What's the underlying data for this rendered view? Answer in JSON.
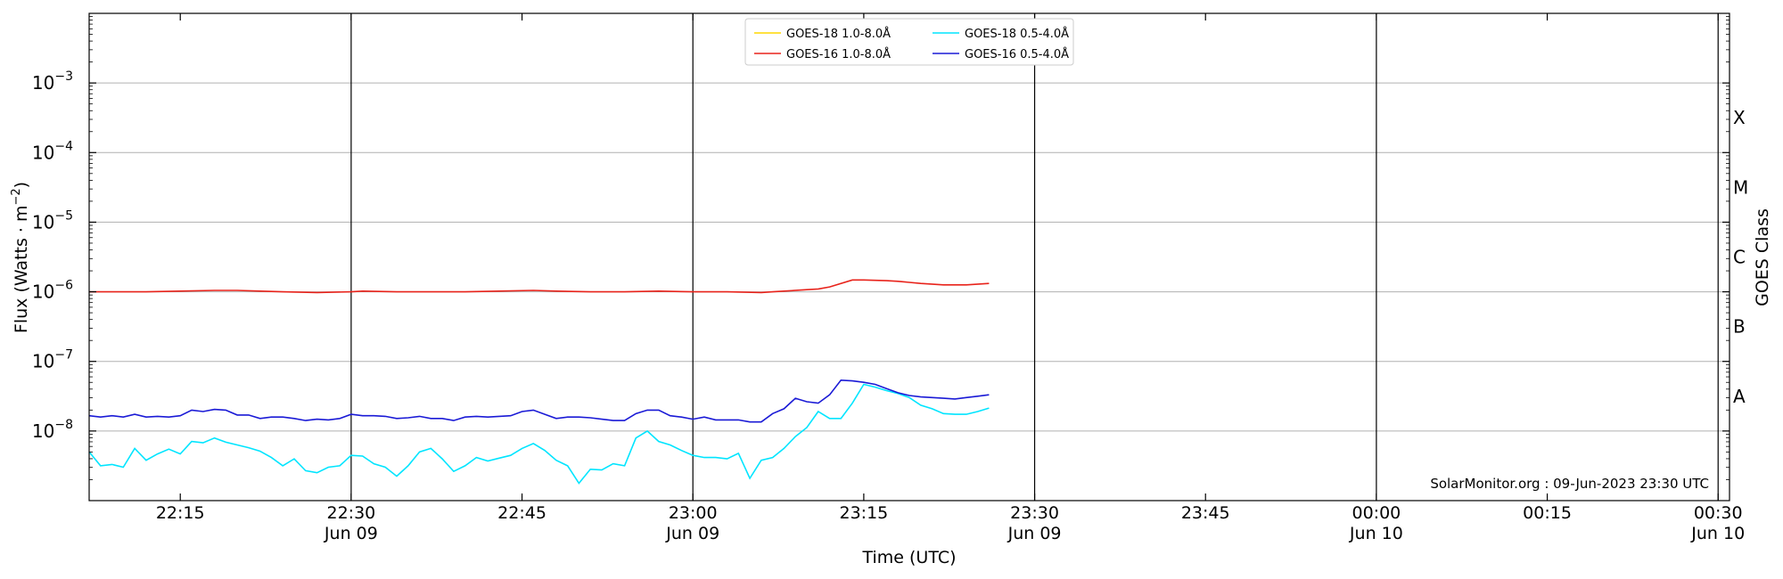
{
  "chart_data": {
    "type": "line",
    "ylabel": "Flux (Watts · m",
    "ylabel_sup": "−2",
    "ylabel_end": ")",
    "xlabel": "Time (UTC)",
    "right_label": "GOES Class",
    "watermark": "SolarMonitor.org : 09-Jun-2023 23:30 UTC",
    "yscale": "log",
    "ylim_exponent": [
      -9,
      -2
    ],
    "xlim_minutes": [
      7,
      151
    ],
    "grid": "horizontal at decades; vertical lines at half-hour marks",
    "legend_position": "top-center",
    "y_ticks": [
      {
        "exp": -8,
        "label": "−8"
      },
      {
        "exp": -7,
        "label": "−7"
      },
      {
        "exp": -6,
        "label": "−6"
      },
      {
        "exp": -5,
        "label": "−5"
      },
      {
        "exp": -4,
        "label": "−4"
      },
      {
        "exp": -3,
        "label": "−3"
      }
    ],
    "y_tick_base": "10",
    "x_ticks": [
      {
        "t": 15,
        "time": "22:15",
        "date": ""
      },
      {
        "t": 30,
        "time": "22:30",
        "date": "Jun 09"
      },
      {
        "t": 45,
        "time": "22:45",
        "date": ""
      },
      {
        "t": 60,
        "time": "23:00",
        "date": "Jun 09"
      },
      {
        "t": 75,
        "time": "23:15",
        "date": ""
      },
      {
        "t": 90,
        "time": "23:30",
        "date": "Jun 09"
      },
      {
        "t": 105,
        "time": "23:45",
        "date": ""
      },
      {
        "t": 120,
        "time": "00:00",
        "date": "Jun 10"
      },
      {
        "t": 135,
        "time": "00:15",
        "date": ""
      },
      {
        "t": 150,
        "time": "00:30",
        "date": "Jun 10"
      }
    ],
    "goes_classes": [
      {
        "label": "X",
        "exp": -3.5
      },
      {
        "label": "M",
        "exp": -4.5
      },
      {
        "label": "C",
        "exp": -5.5
      },
      {
        "label": "B",
        "exp": -6.5
      },
      {
        "label": "A",
        "exp": -7.5
      }
    ],
    "x_note": "x = minutes after 22:00 UTC on 09-Jun-2023",
    "series": [
      {
        "name": "GOES-18 1.0-8.0Å",
        "color": "#ffd700",
        "x": [],
        "exp": []
      },
      {
        "name": "GOES-16 1.0-8.0Å",
        "color": "#e8231b",
        "x": [
          7,
          9,
          12,
          15,
          18,
          20,
          22,
          24,
          27,
          30,
          31,
          34,
          37,
          40,
          43,
          46,
          48,
          51,
          54,
          57,
          60,
          63,
          66,
          67,
          70,
          71,
          72,
          74,
          75,
          77,
          78,
          80,
          82,
          84,
          86
        ],
        "exp": [
          -6.0,
          -6.0,
          -6.0,
          -5.99,
          -5.98,
          -5.98,
          -5.99,
          -6.0,
          -6.01,
          -6.0,
          -5.99,
          -6.0,
          -6.0,
          -6.0,
          -5.99,
          -5.98,
          -5.99,
          -6.0,
          -6.0,
          -5.99,
          -6.0,
          -6.0,
          -6.01,
          -6.0,
          -5.97,
          -5.96,
          -5.93,
          -5.83,
          -5.83,
          -5.84,
          -5.85,
          -5.88,
          -5.9,
          -5.9,
          -5.88
        ]
      },
      {
        "name": "GOES-18 0.5-4.0Å",
        "color": "#00e5ff",
        "x": [
          7,
          8,
          9,
          10,
          11,
          12,
          13,
          14,
          15,
          16,
          17,
          18,
          19,
          20,
          21,
          22,
          23,
          24,
          25,
          26,
          27,
          28,
          29,
          30,
          31,
          32,
          33,
          34,
          35,
          36,
          37,
          38,
          39,
          40,
          41,
          42,
          43,
          44,
          45,
          46,
          47,
          48,
          49,
          50,
          51,
          52,
          53,
          54,
          55,
          56,
          57,
          58,
          59,
          60,
          61,
          62,
          63,
          64,
          65,
          66,
          67,
          68,
          69,
          70,
          71,
          72,
          73,
          74,
          75,
          76,
          77,
          78,
          79,
          80,
          81,
          82,
          83,
          84,
          85,
          86
        ],
        "exp": [
          -8.3,
          -8.5,
          -8.48,
          -8.52,
          -8.25,
          -8.42,
          -8.33,
          -8.26,
          -8.33,
          -8.15,
          -8.17,
          -8.1,
          -8.16,
          -8.2,
          -8.24,
          -8.29,
          -8.38,
          -8.5,
          -8.4,
          -8.57,
          -8.6,
          -8.52,
          -8.5,
          -8.35,
          -8.36,
          -8.47,
          -8.52,
          -8.65,
          -8.5,
          -8.3,
          -8.25,
          -8.4,
          -8.58,
          -8.5,
          -8.38,
          -8.43,
          -8.39,
          -8.35,
          -8.25,
          -8.18,
          -8.28,
          -8.42,
          -8.5,
          -8.75,
          -8.55,
          -8.56,
          -8.47,
          -8.5,
          -8.1,
          -8.0,
          -8.15,
          -8.2,
          -8.28,
          -8.35,
          -8.38,
          -8.38,
          -8.4,
          -8.32,
          -8.68,
          -8.42,
          -8.38,
          -8.25,
          -8.08,
          -7.95,
          -7.72,
          -7.82,
          -7.82,
          -7.6,
          -7.33,
          -7.37,
          -7.42,
          -7.46,
          -7.52,
          -7.63,
          -7.68,
          -7.75,
          -7.76,
          -7.76,
          -7.72,
          -7.67
        ]
      },
      {
        "name": "GOES-16 0.5-4.0Å",
        "color": "#1a1ad6",
        "x": [
          7,
          8,
          9,
          10,
          11,
          12,
          13,
          14,
          15,
          16,
          17,
          18,
          19,
          20,
          21,
          22,
          23,
          24,
          25,
          26,
          27,
          28,
          29,
          30,
          31,
          32,
          33,
          34,
          35,
          36,
          37,
          38,
          39,
          40,
          41,
          42,
          43,
          44,
          45,
          46,
          47,
          48,
          49,
          50,
          51,
          52,
          53,
          54,
          55,
          56,
          57,
          58,
          59,
          60,
          61,
          62,
          63,
          64,
          65,
          66,
          67,
          68,
          69,
          70,
          71,
          72,
          73,
          74,
          75,
          76,
          77,
          78,
          79,
          80,
          81,
          82,
          83,
          84,
          85,
          86
        ],
        "exp": [
          -7.78,
          -7.8,
          -7.78,
          -7.8,
          -7.76,
          -7.8,
          -7.79,
          -7.8,
          -7.78,
          -7.7,
          -7.72,
          -7.69,
          -7.7,
          -7.77,
          -7.77,
          -7.82,
          -7.8,
          -7.8,
          -7.82,
          -7.85,
          -7.83,
          -7.84,
          -7.82,
          -7.76,
          -7.78,
          -7.78,
          -7.79,
          -7.82,
          -7.81,
          -7.79,
          -7.82,
          -7.82,
          -7.85,
          -7.8,
          -7.79,
          -7.8,
          -7.79,
          -7.78,
          -7.72,
          -7.7,
          -7.76,
          -7.82,
          -7.8,
          -7.8,
          -7.81,
          -7.83,
          -7.85,
          -7.85,
          -7.75,
          -7.7,
          -7.7,
          -7.78,
          -7.8,
          -7.83,
          -7.8,
          -7.84,
          -7.84,
          -7.84,
          -7.87,
          -7.87,
          -7.75,
          -7.68,
          -7.53,
          -7.58,
          -7.6,
          -7.48,
          -7.27,
          -7.28,
          -7.3,
          -7.33,
          -7.39,
          -7.45,
          -7.49,
          -7.51,
          -7.52,
          -7.53,
          -7.54,
          -7.52,
          -7.5,
          -7.48
        ]
      }
    ]
  }
}
